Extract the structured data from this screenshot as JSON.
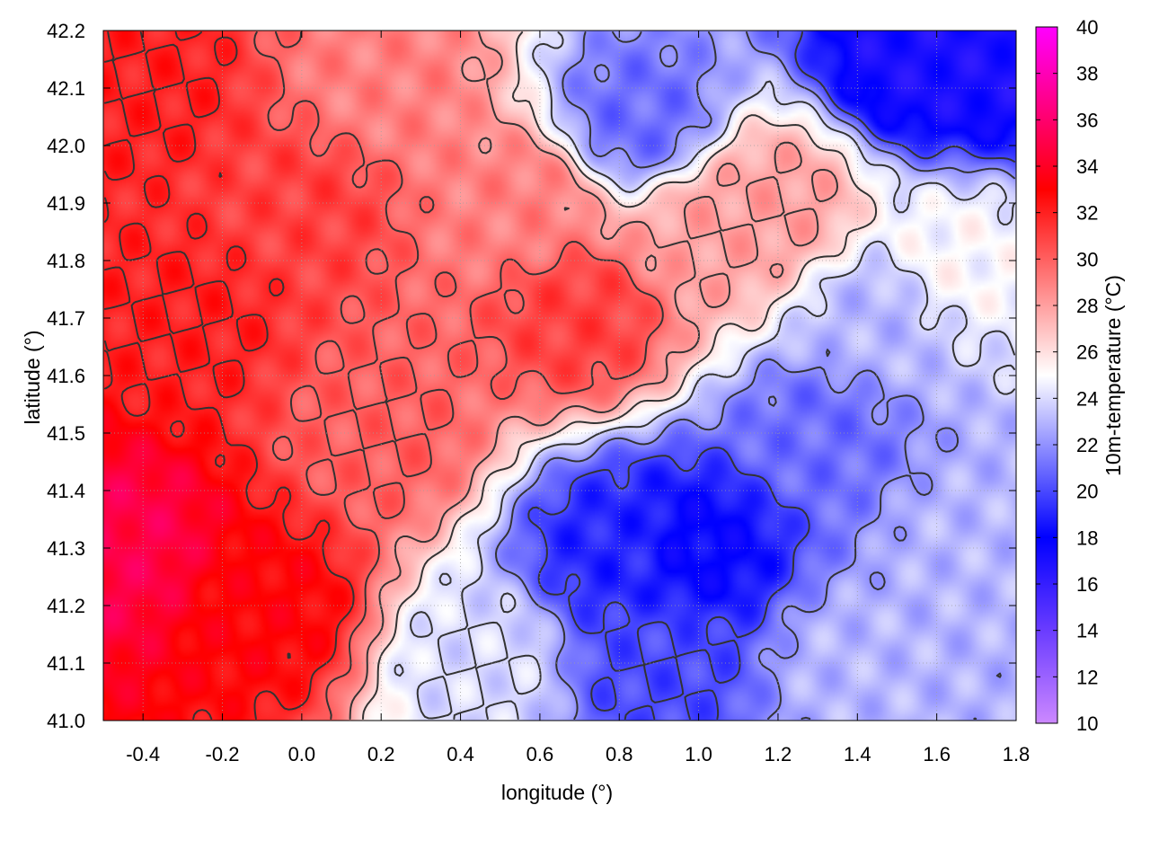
{
  "chart_data": {
    "type": "heatmap",
    "xlabel": "longitude (°)",
    "ylabel": "latitude (°)",
    "colorbar_label": "10m-temperature (°C)",
    "xlim": [
      -0.5,
      1.8
    ],
    "ylim": [
      41.0,
      42.2
    ],
    "x_ticks": [
      "-0.4",
      "-0.2",
      "0.0",
      "0.2",
      "0.4",
      "0.6",
      "0.8",
      "1.0",
      "1.2",
      "1.4",
      "1.6",
      "1.8"
    ],
    "y_ticks": [
      "41.0",
      "41.1",
      "41.2",
      "41.3",
      "41.4",
      "41.5",
      "41.6",
      "41.7",
      "41.8",
      "41.9",
      "42.0",
      "42.1",
      "42.2"
    ],
    "colorbar_range": [
      10,
      40
    ],
    "colorbar_ticks": [
      "10",
      "12",
      "14",
      "16",
      "18",
      "20",
      "22",
      "24",
      "26",
      "28",
      "30",
      "32",
      "34",
      "36",
      "38",
      "40"
    ],
    "grid": true,
    "colormap": [
      {
        "value": 10,
        "color": "#cc88ff"
      },
      {
        "value": 14,
        "color": "#6a3cff"
      },
      {
        "value": 18,
        "color": "#0000ff"
      },
      {
        "value": 25,
        "color": "#ffffff"
      },
      {
        "value": 33,
        "color": "#ff0000"
      },
      {
        "value": 40,
        "color": "#ff00ff"
      }
    ],
    "contour_color": "#333333",
    "field_points": [
      {
        "x": -0.45,
        "y": 41.3,
        "t": 35
      },
      {
        "x": -0.4,
        "y": 42.1,
        "t": 32
      },
      {
        "x": -0.3,
        "y": 41.7,
        "t": 32
      },
      {
        "x": -0.1,
        "y": 41.2,
        "t": 33
      },
      {
        "x": 0.0,
        "y": 41.9,
        "t": 31
      },
      {
        "x": 0.2,
        "y": 41.5,
        "t": 30
      },
      {
        "x": 0.2,
        "y": 42.1,
        "t": 29
      },
      {
        "x": 0.45,
        "y": 41.1,
        "t": 24
      },
      {
        "x": 0.55,
        "y": 41.9,
        "t": 29
      },
      {
        "x": 0.7,
        "y": 41.7,
        "t": 31
      },
      {
        "x": 0.8,
        "y": 41.3,
        "t": 19
      },
      {
        "x": 0.85,
        "y": 42.05,
        "t": 21
      },
      {
        "x": 0.9,
        "y": 41.1,
        "t": 20
      },
      {
        "x": 1.0,
        "y": 41.3,
        "t": 18
      },
      {
        "x": 1.05,
        "y": 41.85,
        "t": 28
      },
      {
        "x": 1.2,
        "y": 41.9,
        "t": 28
      },
      {
        "x": 1.3,
        "y": 41.5,
        "t": 21
      },
      {
        "x": 1.4,
        "y": 41.1,
        "t": 23
      },
      {
        "x": 1.45,
        "y": 41.7,
        "t": 23
      },
      {
        "x": 1.55,
        "y": 42.15,
        "t": 17
      },
      {
        "x": 1.65,
        "y": 41.8,
        "t": 25
      },
      {
        "x": 1.7,
        "y": 41.3,
        "t": 23
      },
      {
        "x": 1.75,
        "y": 42.15,
        "t": 17
      }
    ]
  }
}
